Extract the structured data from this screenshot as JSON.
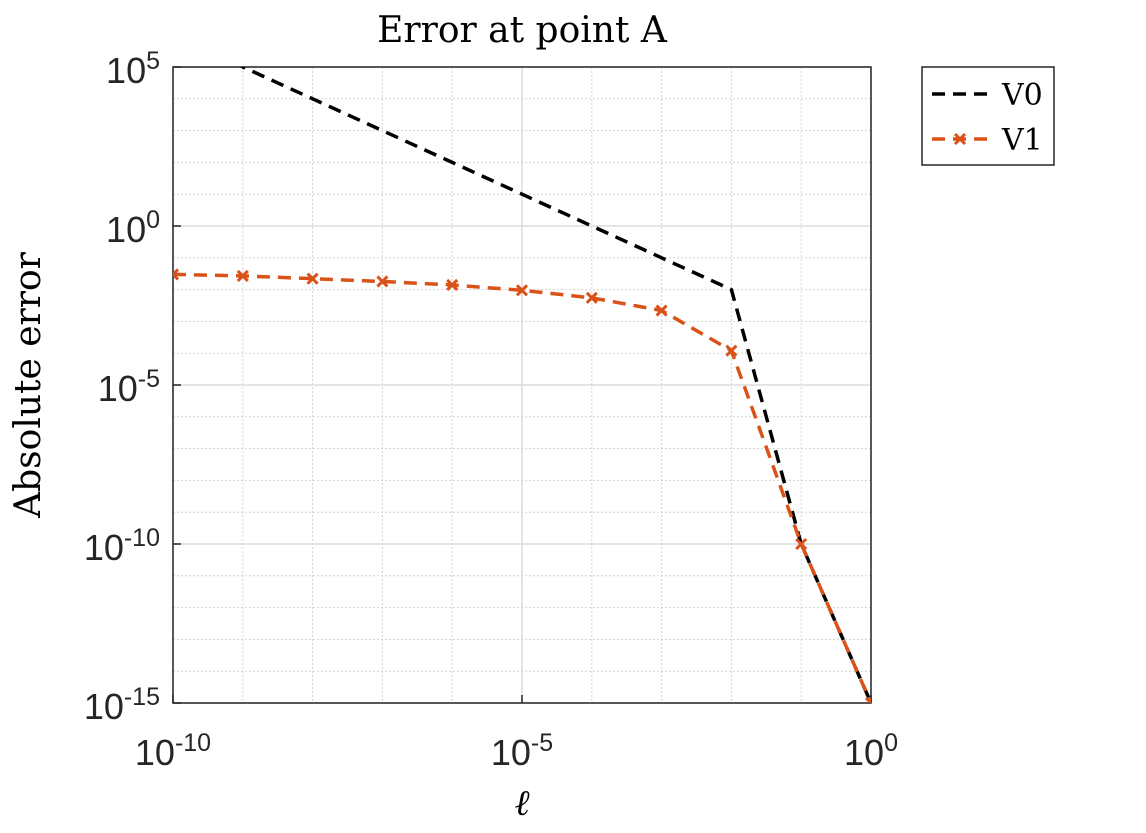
{
  "chart_data": {
    "type": "line",
    "title": "Error at point A",
    "xlabel": "ℓ",
    "ylabel": "Absolute error",
    "xscale": "log",
    "yscale": "log",
    "xlim": [
      1e-10,
      1
    ],
    "ylim": [
      1e-15,
      100000
    ],
    "x_ticks": [
      {
        "value": 1e-10,
        "base": "10",
        "exp": "-10"
      },
      {
        "value": 1e-05,
        "base": "10",
        "exp": "-5"
      },
      {
        "value": 1,
        "base": "10",
        "exp": "0"
      }
    ],
    "y_ticks": [
      {
        "value": 100000,
        "base": "10",
        "exp": "5"
      },
      {
        "value": 1,
        "base": "10",
        "exp": "0"
      },
      {
        "value": 1e-05,
        "base": "10",
        "exp": "-5"
      },
      {
        "value": 1e-10,
        "base": "10",
        "exp": "-10"
      },
      {
        "value": 1e-15,
        "base": "10",
        "exp": "-15"
      }
    ],
    "grid": true,
    "legend_position": "outside-top-right",
    "series": [
      {
        "name": "V0",
        "color": "#000000",
        "line_style": "dashed",
        "marker": "none",
        "x": [
          1e-10,
          1e-09,
          1e-08,
          1e-07,
          1e-06,
          1e-05,
          0.0001,
          0.001,
          0.01,
          0.1,
          1
        ],
        "y": [
          10000000.0,
          100000.0,
          10000.0,
          1000.0,
          100,
          10,
          1,
          0.1,
          0.01,
          1e-10,
          1e-15
        ]
      },
      {
        "name": "V1",
        "color": "#D95319",
        "line_style": "dashed",
        "marker": "x",
        "x": [
          1e-10,
          1e-09,
          1e-08,
          1e-07,
          1e-06,
          1e-05,
          0.0001,
          0.001,
          0.01,
          0.1,
          1
        ],
        "y": [
          0.03,
          0.027,
          0.022,
          0.018,
          0.014,
          0.0095,
          0.0055,
          0.0022,
          0.00012,
          1e-10,
          1e-15
        ]
      }
    ]
  }
}
